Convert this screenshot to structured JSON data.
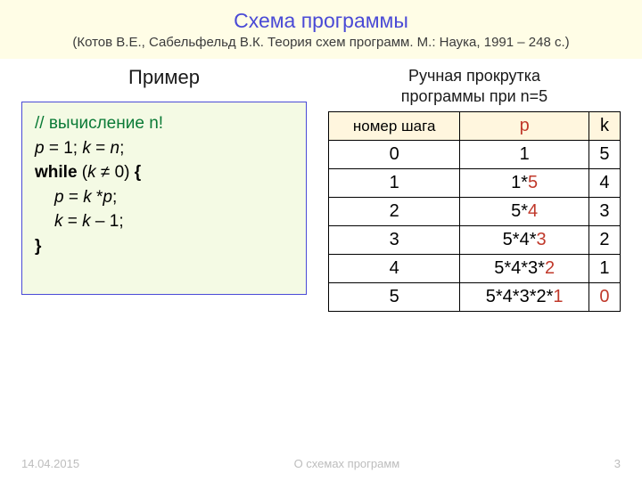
{
  "header": {
    "title": "Схема программы",
    "subtitle": "(Котов В.Е., Сабельфельд В.К. Теория схем программ. М.: Наука, 1991 – 248 с.)"
  },
  "left": {
    "label": "Пример",
    "code": {
      "comment": "// вычисление n!",
      "line2_a": "p",
      "line2_b": " = 1; ",
      "line2_c": "k",
      "line2_d": " = ",
      "line2_e": "n",
      "line2_f": ";",
      "line3_a": "while",
      "line3_b": " (",
      "line3_c": "k",
      "line3_d": " ≠ 0) ",
      "line3_e": "{",
      "line4_a": "p",
      "line4_b": " = ",
      "line4_c": "k",
      "line4_d": " *",
      "line4_e": "p",
      "line4_f": ";",
      "line5_a": "k",
      "line5_b": " = ",
      "line5_c": "k",
      "line5_d": " – 1;",
      "line6": "}"
    },
    "box": {
      "bg": "#f4fae4",
      "border": "#4a4ad6",
      "comment_color": "#0a7a36"
    }
  },
  "right": {
    "label_l1": "Ручная прокрутка",
    "label_l2": "программы  при n=5",
    "columns": {
      "step": "номер шага",
      "p": "p",
      "k": "k"
    },
    "rows": [
      {
        "step": "0",
        "p_pre": "1",
        "p_hl": "",
        "k": "5",
        "k_hl": false
      },
      {
        "step": "1",
        "p_pre": "1*",
        "p_hl": "5",
        "k": "4",
        "k_hl": false
      },
      {
        "step": "2",
        "p_pre": "5*",
        "p_hl": "4",
        "k": "3",
        "k_hl": false
      },
      {
        "step": "3",
        "p_pre": "5*4*",
        "p_hl": "3",
        "k": "2",
        "k_hl": false
      },
      {
        "step": "4",
        "p_pre": "5*4*3*",
        "p_hl": "2",
        "k": "1",
        "k_hl": false
      },
      {
        "step": "5",
        "p_pre": "5*4*3*2*",
        "p_hl": "1",
        "k": "0",
        "k_hl": true
      }
    ],
    "header_bg": "#fff6de",
    "hl_color": "#c0392b"
  },
  "footer": {
    "date": "14.04.2015",
    "mid": "О схемах программ",
    "page": "3"
  }
}
